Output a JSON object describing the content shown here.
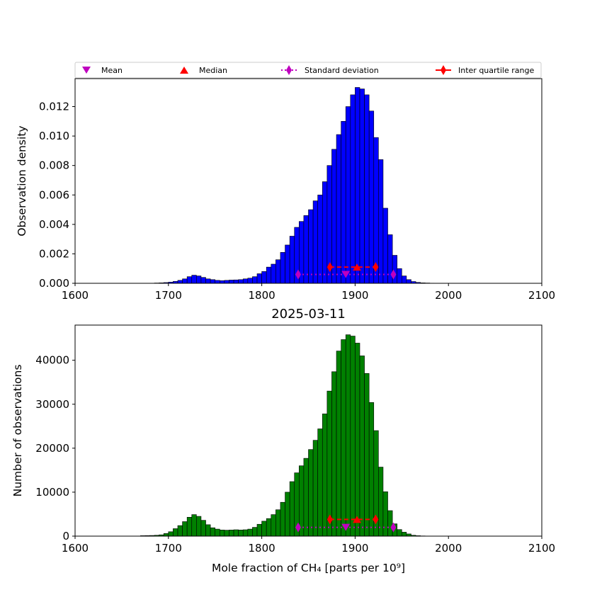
{
  "legend": {
    "placement": "top",
    "entries": [
      {
        "label": "Mean",
        "marker": "triangle-down",
        "color": "#bf00bf"
      },
      {
        "label": "Median",
        "marker": "triangle-up",
        "color": "#ff0000"
      },
      {
        "label": "Standard deviation",
        "marker": "thin-diamond",
        "linestyle": "dotted",
        "color": "#bf00bf"
      },
      {
        "label": "Inter quartile range",
        "marker": "thin-diamond",
        "linestyle": "solid",
        "color": "#ff0000"
      }
    ]
  },
  "chart_data": [
    {
      "type": "bar",
      "ylabel": "Observation density",
      "xlim": [
        1600,
        2100
      ],
      "ylim": [
        0,
        0.0139
      ],
      "xticks": [
        "1600",
        "1700",
        "1800",
        "1900",
        "2000",
        "2100"
      ],
      "yticks": [
        "0.000",
        "0.002",
        "0.004",
        "0.006",
        "0.008",
        "0.010",
        "0.012"
      ],
      "bar_color": "#0000ff",
      "bin_width": 5,
      "bins_start": 1685,
      "values": [
        2e-05,
        3e-05,
        5e-05,
        8e-05,
        0.00013,
        0.0002,
        0.0003,
        0.00045,
        0.00055,
        0.0005,
        0.0004,
        0.0003,
        0.00025,
        0.0002,
        0.00018,
        0.0002,
        0.00022,
        0.00023,
        0.00025,
        0.0003,
        0.00035,
        0.00045,
        0.00065,
        0.0008,
        0.0011,
        0.0013,
        0.0016,
        0.0021,
        0.0026,
        0.0032,
        0.0038,
        0.0042,
        0.0046,
        0.005,
        0.0056,
        0.006,
        0.0069,
        0.008,
        0.0091,
        0.0101,
        0.011,
        0.012,
        0.0128,
        0.0133,
        0.0132,
        0.0128,
        0.0117,
        0.0099,
        0.0084,
        0.0051,
        0.0033,
        0.0019,
        0.001,
        0.0005,
        0.00025,
        0.00012,
        6e-05,
        3e-05,
        2e-05,
        1e-05
      ],
      "mean": {
        "x": 1890,
        "y": 0.0006
      },
      "median": {
        "x": 1902,
        "y": 0.0011
      },
      "std": {
        "x": [
          1839,
          1941
        ],
        "y": 0.0006
      },
      "iqr": {
        "x": [
          1873,
          1922
        ],
        "y": 0.0011
      }
    },
    {
      "type": "bar",
      "title": "2025-03-11",
      "xlabel": "Mole fraction of CH₄ [parts per 10⁹]",
      "ylabel": "Number of observations",
      "xlim": [
        1600,
        2100
      ],
      "ylim": [
        0,
        48000
      ],
      "xticks": [
        "1600",
        "1700",
        "1800",
        "1900",
        "2000",
        "2100"
      ],
      "yticks": [
        "0",
        "10000",
        "20000",
        "30000",
        "40000"
      ],
      "bar_color": "#008000",
      "bin_width": 5,
      "bins_start": 1670,
      "values": [
        100,
        120,
        150,
        200,
        300,
        600,
        1000,
        1700,
        2400,
        3300,
        4300,
        4900,
        4500,
        3600,
        2600,
        1900,
        1600,
        1400,
        1350,
        1400,
        1450,
        1400,
        1450,
        1600,
        2000,
        2700,
        3400,
        4000,
        4900,
        6000,
        7700,
        10000,
        12400,
        14400,
        16000,
        17700,
        19700,
        21800,
        24400,
        27800,
        33000,
        37400,
        42100,
        44700,
        45800,
        45500,
        43900,
        41000,
        37000,
        30400,
        24000,
        15700,
        10100,
        5800,
        2800,
        1500,
        900,
        500,
        200,
        100,
        50,
        30
      ],
      "mean": {
        "x": 1890,
        "y": 2000
      },
      "median": {
        "x": 1902,
        "y": 3800
      },
      "std": {
        "x": [
          1839,
          1941
        ],
        "y": 2000
      },
      "iqr": {
        "x": [
          1873,
          1922
        ],
        "y": 3800
      }
    }
  ]
}
